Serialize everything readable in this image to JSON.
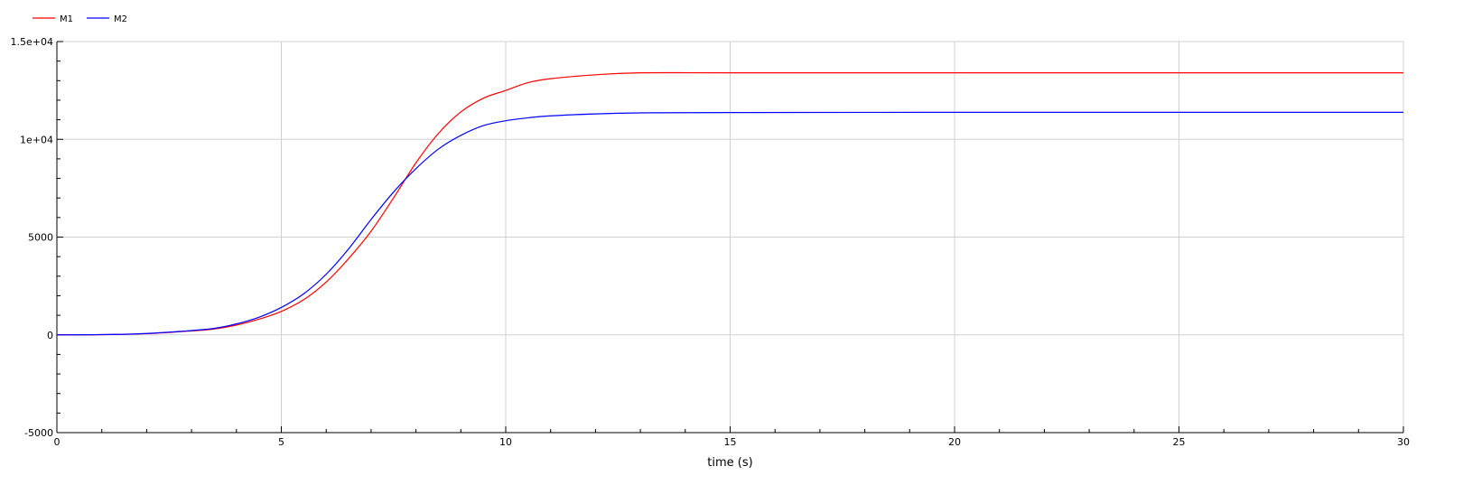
{
  "chart_data": {
    "type": "line",
    "xlabel": "time (s)",
    "ylabel": "",
    "xlim": [
      0,
      30
    ],
    "ylim": [
      -5000,
      15000
    ],
    "x_ticks": [
      0,
      5,
      10,
      15,
      20,
      25,
      30
    ],
    "x_tick_labels": [
      "0",
      "5",
      "10",
      "15",
      "20",
      "25",
      "30"
    ],
    "y_ticks": [
      -5000,
      0,
      5000,
      10000,
      15000
    ],
    "y_tick_labels": [
      "-5000",
      "0",
      "5000",
      "1e+04",
      "1.5e+04"
    ],
    "grid": true,
    "legend_position": "top-left",
    "series": [
      {
        "name": "M1",
        "color": "#ff0000",
        "points": [
          [
            0,
            0
          ],
          [
            1,
            10
          ],
          [
            2,
            60
          ],
          [
            3,
            200
          ],
          [
            3.5,
            300
          ],
          [
            4,
            500
          ],
          [
            4.5,
            800
          ],
          [
            5,
            1200
          ],
          [
            5.5,
            1800
          ],
          [
            6,
            2700
          ],
          [
            6.5,
            3900
          ],
          [
            7,
            5300
          ],
          [
            7.5,
            7000
          ],
          [
            8,
            8800
          ],
          [
            8.5,
            10300
          ],
          [
            9,
            11400
          ],
          [
            9.5,
            12100
          ],
          [
            10,
            12500
          ],
          [
            10.5,
            12900
          ],
          [
            11,
            13100
          ],
          [
            12,
            13300
          ],
          [
            13,
            13400
          ],
          [
            15,
            13400
          ],
          [
            20,
            13400
          ],
          [
            25,
            13400
          ],
          [
            30,
            13400
          ]
        ]
      },
      {
        "name": "M2",
        "color": "#0000ff",
        "points": [
          [
            0,
            0
          ],
          [
            1,
            10
          ],
          [
            2,
            70
          ],
          [
            3,
            220
          ],
          [
            3.5,
            330
          ],
          [
            4,
            560
          ],
          [
            4.5,
            900
          ],
          [
            5,
            1400
          ],
          [
            5.5,
            2100
          ],
          [
            6,
            3100
          ],
          [
            6.5,
            4400
          ],
          [
            7,
            5900
          ],
          [
            7.5,
            7300
          ],
          [
            8,
            8500
          ],
          [
            8.5,
            9500
          ],
          [
            9,
            10200
          ],
          [
            9.5,
            10700
          ],
          [
            10,
            10950
          ],
          [
            10.5,
            11100
          ],
          [
            11,
            11200
          ],
          [
            12,
            11300
          ],
          [
            13,
            11350
          ],
          [
            15,
            11370
          ],
          [
            20,
            11380
          ],
          [
            25,
            11380
          ],
          [
            30,
            11380
          ]
        ]
      }
    ]
  }
}
